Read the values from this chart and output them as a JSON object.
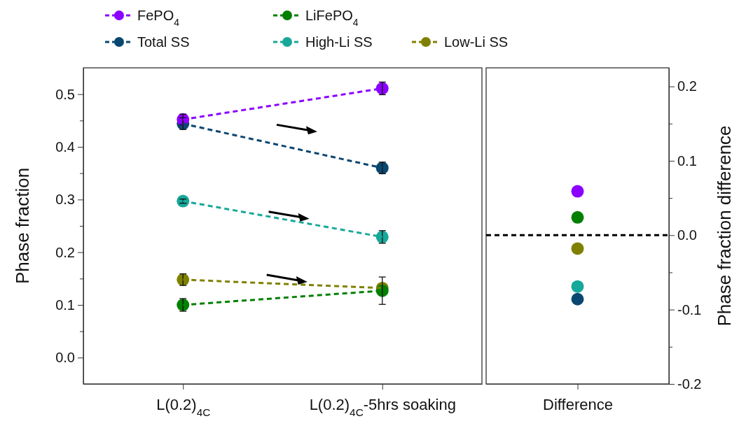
{
  "chart_data": [
    {
      "type": "line",
      "ylabel": "Phase fraction",
      "categories": [
        "L(0.2)$_{4C}$",
        "L(0.2)$_{4C}$-5hrs soaking"
      ],
      "ylim": [
        -0.05,
        0.55
      ],
      "yticks": [
        {
          "value": 0,
          "label": "0.0"
        },
        {
          "value": 0.05,
          "label": null
        },
        {
          "value": 0.1,
          "label": "0.1"
        },
        {
          "value": 0.15,
          "label": null
        },
        {
          "value": 0.2,
          "label": "0.2"
        },
        {
          "value": 0.25,
          "label": null
        },
        {
          "value": 0.3,
          "label": "0.3"
        },
        {
          "value": 0.35,
          "label": null
        },
        {
          "value": 0.4,
          "label": "0.4"
        },
        {
          "value": 0.45,
          "label": null
        },
        {
          "value": 0.5,
          "label": "0.5"
        }
      ],
      "marker": "circle",
      "line_style": "dashed",
      "legend": "top",
      "grid": false,
      "series": [
        {
          "name": "FePO$_{4}$",
          "color": "#8b00ff",
          "values": [
            0.452,
            0.511
          ],
          "errors": [
            0.01,
            0.012
          ]
        },
        {
          "name": "LiFePO$_{4}$",
          "color": "#008000",
          "values": [
            0.1,
            0.127
          ],
          "errors": [
            0.012,
            0.026
          ]
        },
        {
          "name": "Total SS",
          "color": "#0a4770",
          "values": [
            0.444,
            0.36
          ],
          "errors": [
            0.011,
            0.011
          ]
        },
        {
          "name": "High-Li SS",
          "color": "#17a89a",
          "values": [
            0.297,
            0.229
          ],
          "errors": [
            0.004,
            0.012
          ]
        },
        {
          "name": "Low-Li SS",
          "color": "#808000",
          "values": [
            0.148,
            0.132
          ],
          "errors": [
            0.011,
            null
          ]
        }
      ]
    },
    {
      "type": "scatter",
      "y2label": "Phase fraction difference",
      "categories": [
        "Difference"
      ],
      "y2lim": [
        -0.2,
        0.225
      ],
      "y2ticks": [
        {
          "value": -0.2,
          "label": "-0.2"
        },
        {
          "value": -0.15,
          "label": null
        },
        {
          "value": -0.1,
          "label": "-0.1"
        },
        {
          "value": -0.05,
          "label": null
        },
        {
          "value": 0,
          "label": "0.0"
        },
        {
          "value": 0.05,
          "label": null
        },
        {
          "value": 0.1,
          "label": "0.1"
        },
        {
          "value": 0.15,
          "label": null
        },
        {
          "value": 0.2,
          "label": "0.2"
        }
      ],
      "marker": "circle",
      "grid": false,
      "ref_lines": [
        {
          "axis": "y2",
          "value": 0,
          "color": "#000000",
          "line_style": "dashed"
        }
      ],
      "series": [
        {
          "color": "#8b00ff",
          "values": [
            0.059
          ],
          "axis": "y2"
        },
        {
          "color": "#008000",
          "values": [
            0.024
          ],
          "axis": "y2"
        },
        {
          "color": "#808000",
          "values": [
            -0.018
          ],
          "axis": "y2"
        },
        {
          "color": "#17a89a",
          "values": [
            -0.069
          ],
          "axis": "y2"
        },
        {
          "color": "#0a4770",
          "values": [
            -0.086
          ],
          "axis": "y2"
        }
      ]
    }
  ]
}
